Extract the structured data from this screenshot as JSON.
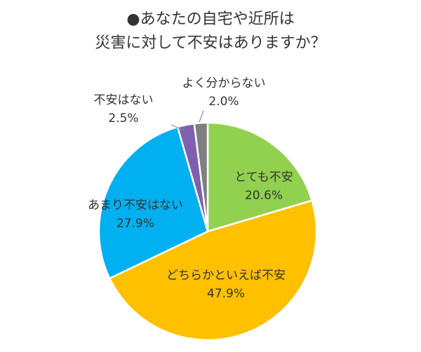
{
  "chart_data": {
    "type": "pie",
    "title_lines": [
      "●あなたの自宅や近所は",
      "災害に対して不安はありますか？"
    ],
    "slices": [
      {
        "label": "とても不安",
        "value": 20.6,
        "display": "20.6%",
        "color": "#92D050"
      },
      {
        "label": "どちらかといえば不安",
        "value": 47.9,
        "display": "47.9%",
        "color": "#FFC000"
      },
      {
        "label": "あまり不安はない",
        "value": 27.9,
        "display": "27.9%",
        "color": "#00B0F0"
      },
      {
        "label": "不安はない",
        "value": 2.5,
        "display": "2.5%",
        "color": "#7F5FB0"
      },
      {
        "label": "よく分からない",
        "value": 2.0,
        "display": "2.0%",
        "color": "#7F7F7F"
      }
    ],
    "start_angle": "12 o'clock",
    "direction": "clockwise",
    "legend": "none"
  }
}
